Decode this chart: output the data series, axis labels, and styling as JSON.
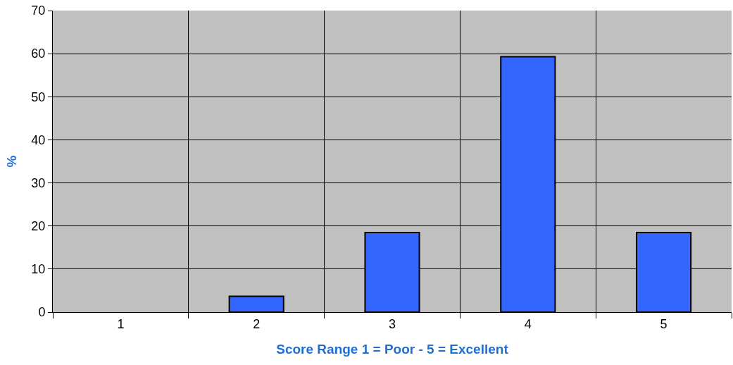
{
  "chart_data": {
    "type": "bar",
    "xlabel": "Score Range 1 = Poor - 5 = Excellent",
    "ylabel": "%",
    "categories": [
      "1",
      "2",
      "3",
      "4",
      "5"
    ],
    "values": [
      null,
      3.7,
      18.5,
      59.3,
      18.5
    ],
    "color": "#3366ff",
    "ylim": [
      0,
      70
    ],
    "yticks": [
      0,
      10,
      20,
      30,
      40,
      50,
      60,
      70
    ],
    "grid": true
  }
}
